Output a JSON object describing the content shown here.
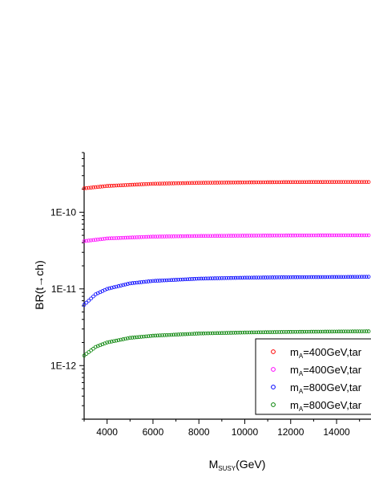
{
  "chart_data": {
    "type": "scatter",
    "xlabel_main": "M",
    "xlabel_sub": "SUSY",
    "xlabel_unit": "(GeV)",
    "ylabel": "BR(t→ch)",
    "xlim": [
      3000,
      15500
    ],
    "ylim": [
      2e-13,
      6e-10
    ],
    "yscale": "log",
    "x_ticks": [
      4000,
      6000,
      8000,
      10000,
      12000,
      14000
    ],
    "x_tick_labels": [
      "4000",
      "6000",
      "8000",
      "10000",
      "12000",
      "14000"
    ],
    "y_ticks": [
      1e-12,
      1e-11,
      1e-10
    ],
    "y_tick_labels": [
      "1E-12",
      "1E-11",
      "1E-10"
    ],
    "grid": false,
    "legend_position": "bottom-right",
    "series": [
      {
        "label_main": "m",
        "label_sub": "A",
        "label_rest": "=400GeV,tar",
        "color": "#ff0000",
        "x": [
          3000,
          4000,
          6000,
          8000,
          10000,
          12000,
          14000,
          15500
        ],
        "y": [
          2.05e-10,
          2.2e-10,
          2.35e-10,
          2.42e-10,
          2.45e-10,
          2.47e-10,
          2.48e-10,
          2.48e-10
        ]
      },
      {
        "label_main": "m",
        "label_sub": "A",
        "label_rest": "=400GeV,tar",
        "color": "#ff00ff",
        "x": [
          3000,
          4000,
          6000,
          8000,
          10000,
          12000,
          14000,
          15500
        ],
        "y": [
          4.2e-11,
          4.55e-11,
          4.8e-11,
          4.9e-11,
          4.95e-11,
          4.98e-11,
          5e-11,
          5e-11
        ]
      },
      {
        "label_main": "m",
        "label_sub": "A",
        "label_rest": "=800GeV,tar",
        "color": "#0000ff",
        "x": [
          3000,
          3500,
          4000,
          5000,
          6000,
          8000,
          10000,
          12000,
          14000,
          15500
        ],
        "y": [
          6.2e-12,
          8.5e-12,
          1e-11,
          1.18e-11,
          1.27e-11,
          1.36e-11,
          1.4e-11,
          1.42e-11,
          1.43e-11,
          1.44e-11
        ]
      },
      {
        "label_main": "m",
        "label_sub": "A",
        "label_rest": "=800GeV,tar",
        "color": "#008000",
        "x": [
          3000,
          3500,
          4000,
          5000,
          6000,
          8000,
          10000,
          12000,
          14000,
          15500
        ],
        "y": [
          1.35e-12,
          1.75e-12,
          2e-12,
          2.3e-12,
          2.45e-12,
          2.62e-12,
          2.7e-12,
          2.75e-12,
          2.78e-12,
          2.8e-12
        ]
      }
    ]
  }
}
